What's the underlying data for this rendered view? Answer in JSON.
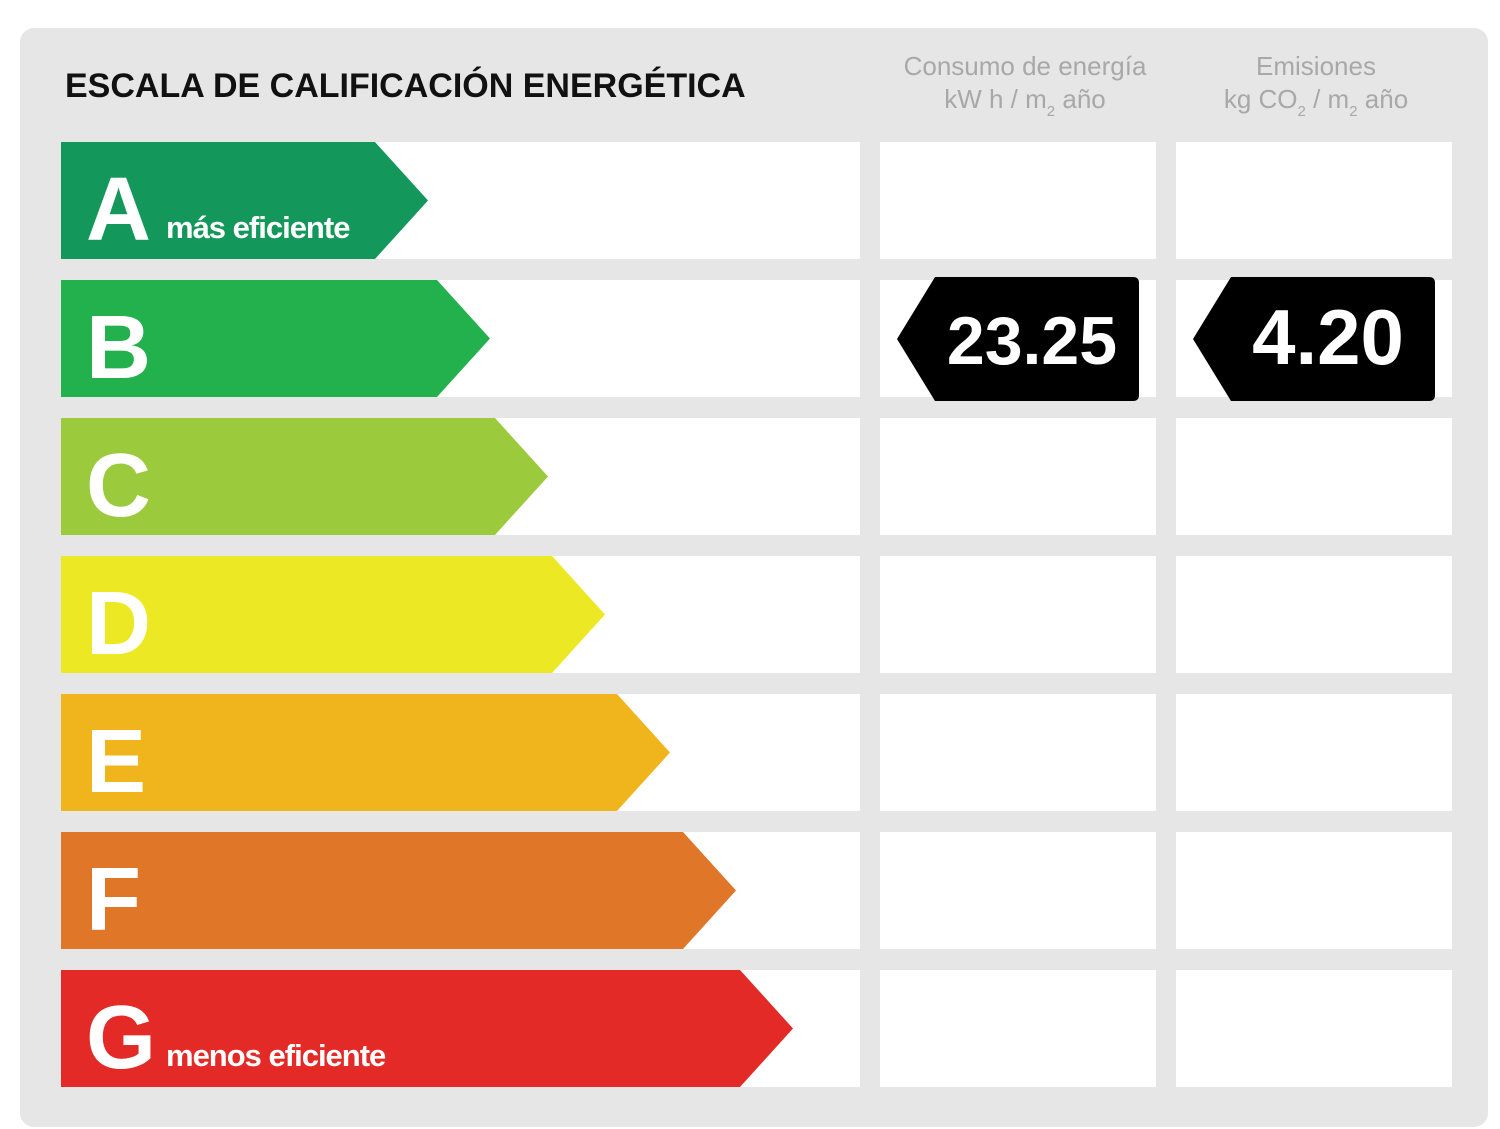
{
  "title": "ESCALA DE CALIFICACIÓN ENERGÉTICA",
  "energy_header": {
    "line1": "Consumo de energía",
    "line2": [
      "kW h / m",
      "2",
      " año"
    ]
  },
  "emissions_header": {
    "line1": "Emisiones",
    "line2": [
      "kg CO",
      "2",
      " / m",
      "2",
      " año"
    ]
  },
  "ratings": [
    {
      "letter": "A",
      "note": "más eficiente",
      "color": "#14975a"
    },
    {
      "letter": "B",
      "color": "#22b14c",
      "energy": "23.25",
      "emissions": "4.20"
    },
    {
      "letter": "C",
      "color": "#9bcb3c"
    },
    {
      "letter": "D",
      "color": "#ece824"
    },
    {
      "letter": "E",
      "color": "#f0b51c"
    },
    {
      "letter": "F",
      "color": "#e07628"
    },
    {
      "letter": "G",
      "note": "menos eficiente",
      "color": "#e32a27"
    }
  ]
}
